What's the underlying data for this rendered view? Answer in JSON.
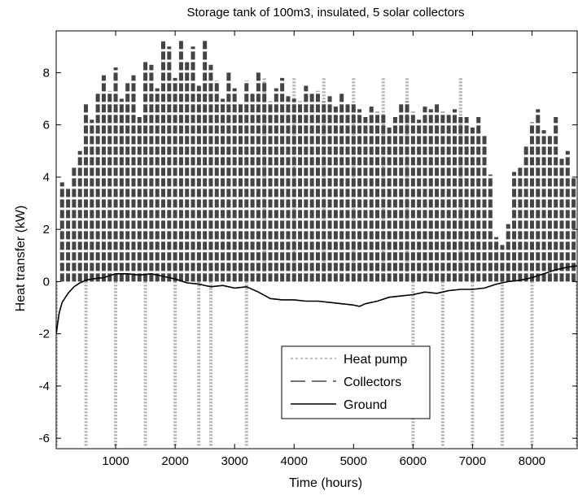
{
  "chart_data": {
    "type": "line",
    "title": "Storage tank of 100m3, insulated, 5 solar collectors",
    "xlabel": "Time (hours)",
    "ylabel": "Heat transfer (kW)",
    "xlim": [
      0,
      8760
    ],
    "ylim": [
      -6.4,
      9.6
    ],
    "xticks": [
      1000,
      2000,
      3000,
      4000,
      5000,
      6000,
      7000,
      8000
    ],
    "yticks": [
      -6,
      -4,
      -2,
      0,
      2,
      4,
      6,
      8
    ],
    "grid": false,
    "legend_position": "bottom-center",
    "series": [
      {
        "name": "Heat pump",
        "style": "dotted",
        "color": "#aaaaaa",
        "description_values": {
          "low_season_negative_peak": -6.3,
          "summer_positive_peak": 7.8
        },
        "points": [
          [
            0,
            -6.3
          ],
          [
            500,
            -6.3
          ],
          [
            1000,
            -6.3
          ],
          [
            1500,
            -6.3
          ],
          [
            2000,
            -6.3
          ],
          [
            2400,
            -6.3
          ],
          [
            2600,
            -6.3
          ],
          [
            3200,
            -6.3
          ],
          [
            3300,
            0
          ],
          [
            3500,
            7.8
          ],
          [
            4000,
            7.8
          ],
          [
            4500,
            7.8
          ],
          [
            5000,
            7.8
          ],
          [
            5500,
            7.8
          ],
          [
            5900,
            7.8
          ],
          [
            6000,
            -6.3
          ],
          [
            6500,
            -6.3
          ],
          [
            6800,
            7.8
          ],
          [
            7000,
            -6.3
          ],
          [
            7500,
            -6.3
          ],
          [
            8000,
            -6.3
          ],
          [
            8760,
            -6.3
          ]
        ]
      },
      {
        "name": "Collectors",
        "style": "dashed",
        "color": "#444444",
        "points": [
          [
            100,
            3.8
          ],
          [
            200,
            3.6
          ],
          [
            300,
            4.4
          ],
          [
            400,
            5.0
          ],
          [
            500,
            6.8
          ],
          [
            600,
            6.2
          ],
          [
            700,
            7.2
          ],
          [
            800,
            7.9
          ],
          [
            900,
            7.3
          ],
          [
            1000,
            8.2
          ],
          [
            1100,
            7.0
          ],
          [
            1200,
            7.6
          ],
          [
            1300,
            7.9
          ],
          [
            1400,
            6.3
          ],
          [
            1500,
            8.5
          ],
          [
            1600,
            8.3
          ],
          [
            1700,
            7.4
          ],
          [
            1800,
            9.2
          ],
          [
            1900,
            9.0
          ],
          [
            2000,
            7.8
          ],
          [
            2100,
            9.3
          ],
          [
            2200,
            8.4
          ],
          [
            2300,
            9.0
          ],
          [
            2400,
            7.5
          ],
          [
            2500,
            9.3
          ],
          [
            2600,
            8.3
          ],
          [
            2700,
            7.7
          ],
          [
            2800,
            7.0
          ],
          [
            2900,
            8.0
          ],
          [
            3000,
            7.4
          ],
          [
            3100,
            6.8
          ],
          [
            3200,
            7.7
          ],
          [
            3300,
            7.2
          ],
          [
            3400,
            8.0
          ],
          [
            3500,
            7.6
          ],
          [
            3600,
            6.9
          ],
          [
            3700,
            7.4
          ],
          [
            3800,
            7.8
          ],
          [
            3900,
            7.1
          ],
          [
            4000,
            7.0
          ],
          [
            4100,
            6.9
          ],
          [
            4200,
            7.5
          ],
          [
            4300,
            7.2
          ],
          [
            4400,
            7.3
          ],
          [
            4500,
            6.9
          ],
          [
            4600,
            7.1
          ],
          [
            4700,
            6.7
          ],
          [
            4800,
            7.2
          ],
          [
            4900,
            6.8
          ],
          [
            5000,
            6.8
          ],
          [
            5100,
            6.6
          ],
          [
            5200,
            6.3
          ],
          [
            5300,
            6.7
          ],
          [
            5400,
            6.5
          ],
          [
            5500,
            6.4
          ],
          [
            5600,
            5.9
          ],
          [
            5700,
            6.3
          ],
          [
            5800,
            6.8
          ],
          [
            5900,
            6.9
          ],
          [
            6000,
            6.5
          ],
          [
            6100,
            6.2
          ],
          [
            6200,
            6.7
          ],
          [
            6300,
            6.6
          ],
          [
            6400,
            6.8
          ],
          [
            6500,
            6.5
          ],
          [
            6600,
            6.4
          ],
          [
            6700,
            6.6
          ],
          [
            6800,
            6.3
          ],
          [
            6900,
            6.3
          ],
          [
            7000,
            5.9
          ],
          [
            7100,
            6.3
          ],
          [
            7200,
            5.6
          ],
          [
            7300,
            4.1
          ],
          [
            7400,
            1.7
          ],
          [
            7500,
            1.4
          ],
          [
            7600,
            2.2
          ],
          [
            7700,
            4.2
          ],
          [
            7800,
            4.4
          ],
          [
            7900,
            5.2
          ],
          [
            8000,
            6.1
          ],
          [
            8100,
            6.6
          ],
          [
            8200,
            5.8
          ],
          [
            8300,
            5.6
          ],
          [
            8400,
            6.3
          ],
          [
            8500,
            4.7
          ],
          [
            8600,
            5.0
          ],
          [
            8700,
            4.0
          ]
        ]
      },
      {
        "name": "Ground",
        "style": "solid",
        "color": "#000000",
        "points": [
          [
            0,
            -2.0
          ],
          [
            50,
            -1.2
          ],
          [
            100,
            -0.8
          ],
          [
            200,
            -0.45
          ],
          [
            300,
            -0.2
          ],
          [
            400,
            -0.05
          ],
          [
            500,
            0.05
          ],
          [
            600,
            0.1
          ],
          [
            800,
            0.15
          ],
          [
            1000,
            0.3
          ],
          [
            1200,
            0.3
          ],
          [
            1400,
            0.25
          ],
          [
            1600,
            0.3
          ],
          [
            1800,
            0.2
          ],
          [
            2000,
            0.1
          ],
          [
            2200,
            -0.05
          ],
          [
            2400,
            -0.1
          ],
          [
            2600,
            -0.2
          ],
          [
            2800,
            -0.15
          ],
          [
            3000,
            -0.25
          ],
          [
            3200,
            -0.2
          ],
          [
            3400,
            -0.4
          ],
          [
            3600,
            -0.65
          ],
          [
            3800,
            -0.7
          ],
          [
            4000,
            -0.7
          ],
          [
            4200,
            -0.75
          ],
          [
            4400,
            -0.75
          ],
          [
            4600,
            -0.8
          ],
          [
            4800,
            -0.85
          ],
          [
            5000,
            -0.9
          ],
          [
            5100,
            -0.95
          ],
          [
            5200,
            -0.85
          ],
          [
            5400,
            -0.75
          ],
          [
            5600,
            -0.6
          ],
          [
            5800,
            -0.55
          ],
          [
            6000,
            -0.5
          ],
          [
            6200,
            -0.4
          ],
          [
            6400,
            -0.45
          ],
          [
            6600,
            -0.35
          ],
          [
            6800,
            -0.3
          ],
          [
            7000,
            -0.3
          ],
          [
            7200,
            -0.25
          ],
          [
            7400,
            -0.1
          ],
          [
            7600,
            0.0
          ],
          [
            7800,
            0.05
          ],
          [
            8000,
            0.15
          ],
          [
            8200,
            0.3
          ],
          [
            8400,
            0.45
          ],
          [
            8600,
            0.55
          ],
          [
            8760,
            0.6
          ]
        ]
      }
    ]
  }
}
